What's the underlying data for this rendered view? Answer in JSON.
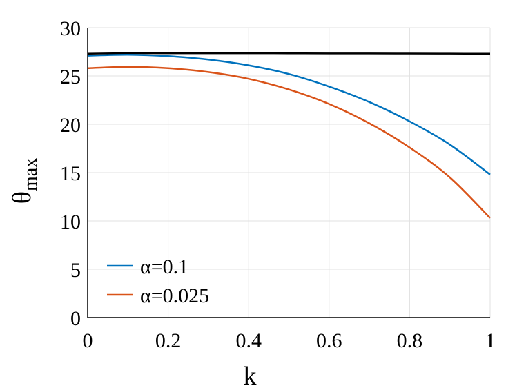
{
  "chart_data": {
    "type": "line",
    "xlabel": "k",
    "ylabel": {
      "main": "θ",
      "sub": "max"
    },
    "xlim": [
      0,
      1
    ],
    "ylim": [
      0,
      30
    ],
    "xticks": [
      0,
      0.2,
      0.4,
      0.6,
      0.8,
      1
    ],
    "xtick_labels": [
      "0",
      "0.2",
      "0.4",
      "0.6",
      "0.8",
      "1"
    ],
    "yticks": [
      0,
      5,
      10,
      15,
      20,
      25,
      30
    ],
    "ytick_labels": [
      "0",
      "5",
      "10",
      "15",
      "20",
      "25",
      "30"
    ],
    "grid": true,
    "legend_position": "bottom-left",
    "series": [
      {
        "color": "#000000",
        "x": [
          0,
          0.1,
          0.2,
          0.3,
          0.4,
          0.5,
          0.6,
          0.7,
          0.8,
          0.9,
          1.0
        ],
        "y": [
          27.3,
          27.35,
          27.35,
          27.35,
          27.35,
          27.34,
          27.33,
          27.33,
          27.32,
          27.31,
          27.3
        ]
      },
      {
        "name": "α=0.1",
        "color": "#0072BD",
        "x": [
          0,
          0.1,
          0.2,
          0.3,
          0.4,
          0.5,
          0.6,
          0.7,
          0.8,
          0.9,
          1.0
        ],
        "y": [
          27.1,
          27.2,
          27.05,
          26.7,
          26.1,
          25.2,
          23.9,
          22.3,
          20.3,
          17.9,
          14.8
        ]
      },
      {
        "name": "α=0.025",
        "color": "#D95319",
        "x": [
          0,
          0.1,
          0.2,
          0.3,
          0.4,
          0.5,
          0.6,
          0.7,
          0.8,
          0.9,
          1.0
        ],
        "y": [
          25.8,
          25.95,
          25.8,
          25.4,
          24.7,
          23.6,
          22.1,
          20.1,
          17.6,
          14.5,
          10.3
        ]
      }
    ]
  }
}
